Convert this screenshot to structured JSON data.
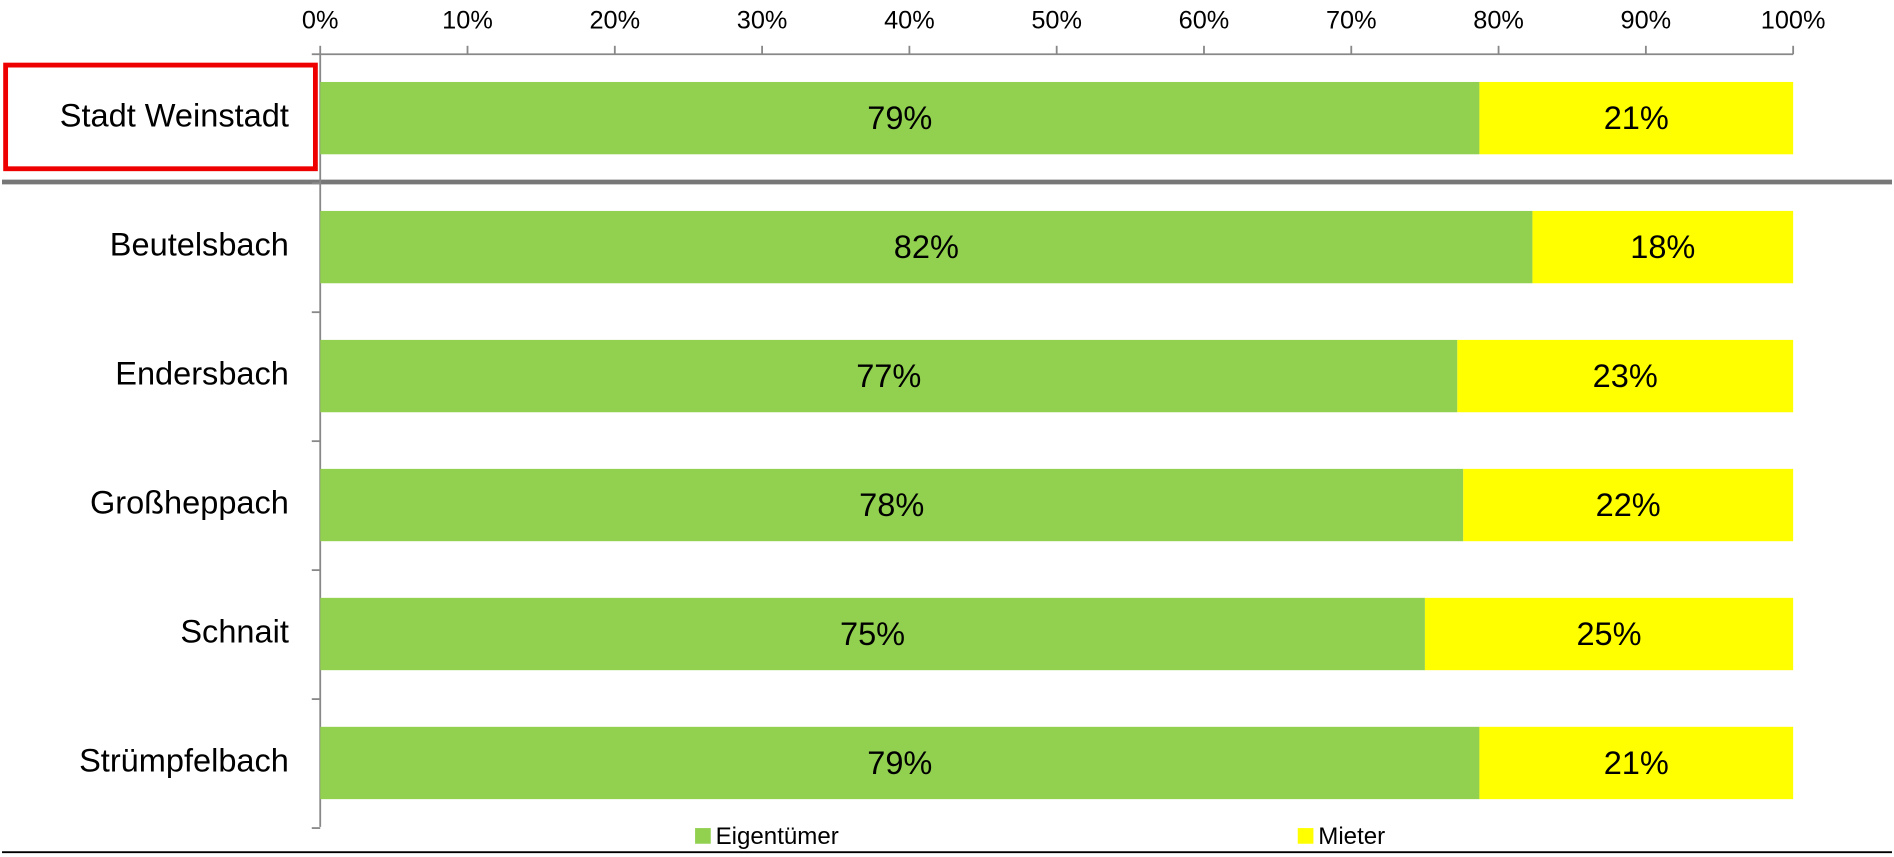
{
  "chart_data": {
    "type": "stacked_barh",
    "categories": [
      "Stadt Weinstadt",
      "Beutelsbach",
      "Endersbach",
      "Großheppach",
      "Schnait",
      "Strümpfelbach"
    ],
    "series": [
      {
        "name": "Eigentümer",
        "color": "#92d050",
        "values": [
          78.7,
          82.3,
          77.2,
          77.6,
          75.0,
          78.7
        ],
        "value_labels": [
          "79%",
          "82%",
          "77%",
          "78%",
          "75%",
          "79%"
        ]
      },
      {
        "name": "Mieter",
        "color": "#ffff00",
        "values": [
          21.3,
          17.7,
          22.8,
          22.4,
          25.0,
          21.3
        ],
        "value_labels": [
          "21%",
          "18%",
          "23%",
          "22%",
          "25%",
          "21%"
        ]
      }
    ],
    "xlim": [
      0,
      100
    ],
    "xticks": [
      {
        "value": 0,
        "label": "0%"
      },
      {
        "value": 10,
        "label": "10%"
      },
      {
        "value": 20,
        "label": "20%"
      },
      {
        "value": 30,
        "label": "30%"
      },
      {
        "value": 40,
        "label": "40%"
      },
      {
        "value": 50,
        "label": "50%"
      },
      {
        "value": 60,
        "label": "60%"
      },
      {
        "value": 70,
        "label": "70%"
      },
      {
        "value": 80,
        "label": "80%"
      },
      {
        "value": 90,
        "label": "90%"
      },
      {
        "value": 100,
        "label": "100%"
      }
    ],
    "legend": "bottom"
  }
}
